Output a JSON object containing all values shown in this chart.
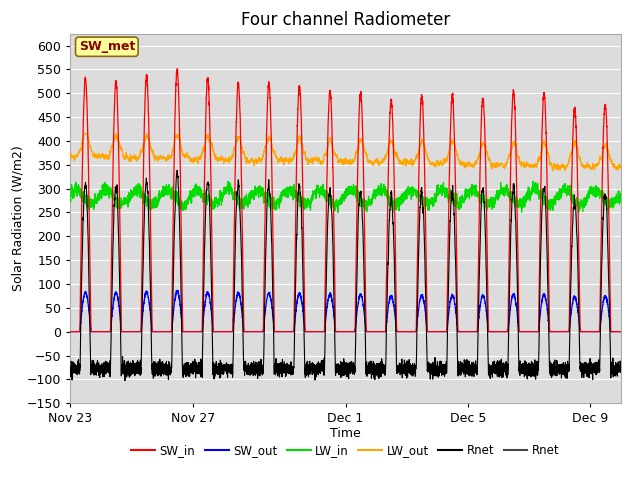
{
  "title": "Four channel Radiometer",
  "xlabel": "Time",
  "ylabel": "Solar Radiation (W/m2)",
  "ylim": [
    -150,
    625
  ],
  "yticks": [
    -150,
    -100,
    -50,
    0,
    50,
    100,
    150,
    200,
    250,
    300,
    350,
    400,
    450,
    500,
    550,
    600
  ],
  "num_days": 18,
  "xtick_labels": [
    "Nov 23",
    "Nov 27",
    "Dec 1",
    "Dec 5",
    "Dec 9"
  ],
  "xtick_positions": [
    0,
    4,
    9,
    13,
    17
  ],
  "legend_entries": [
    "SW_in",
    "SW_out",
    "LW_in",
    "LW_out",
    "Rnet",
    "Rnet"
  ],
  "colors": {
    "SW_in": "#FF0000",
    "SW_out": "#0000FF",
    "LW_in": "#00DD00",
    "LW_out": "#FFA500",
    "Rnet1": "#000000",
    "Rnet2": "#444444"
  },
  "annotation_text": "SW_met",
  "annotation_color": "#8B0000",
  "annotation_bg": "#FFFF99",
  "annotation_edge": "#8B6914",
  "background_color": "#DCDCDC",
  "grid_color": "#FFFFFF",
  "title_fontsize": 12,
  "label_fontsize": 9,
  "tick_fontsize": 9
}
